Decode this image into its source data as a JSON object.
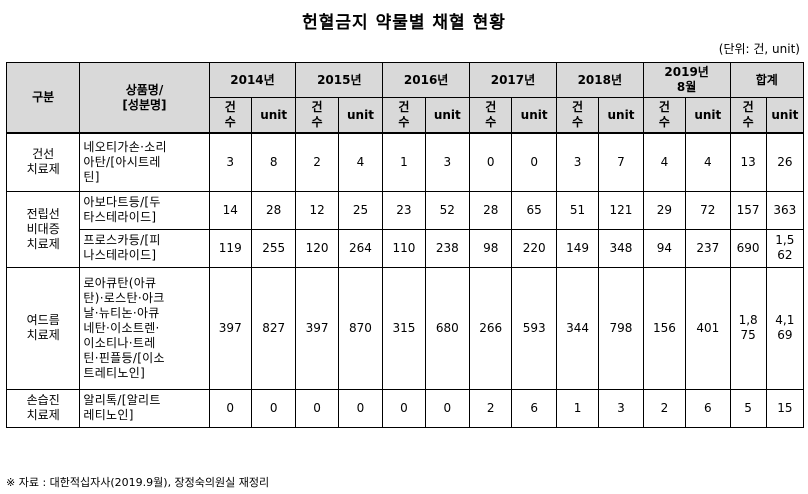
{
  "title": "헌혈금지 약물별 채혈 현황",
  "unit_note": "(단위: 건, unit)",
  "header": {
    "category": "구분",
    "product": "상품명/\n[성분명]",
    "years": [
      "2014년",
      "2015년",
      "2016년",
      "2017년",
      "2018년",
      "2019년\n8월",
      "합계"
    ],
    "count": "건\n수",
    "unit": "unit"
  },
  "rows": [
    {
      "category": "건선\n치료제",
      "product": "네오티가손·소리\n아탄/[아시트레\n틴]",
      "values": [
        "3",
        "8",
        "2",
        "4",
        "1",
        "3",
        "0",
        "0",
        "3",
        "7",
        "4",
        "4",
        "13",
        "26"
      ]
    },
    {
      "category": "전립선\n비대증\n치료제",
      "product": "아보다트등/[두\n타스테라이드]",
      "values": [
        "14",
        "28",
        "12",
        "25",
        "23",
        "52",
        "28",
        "65",
        "51",
        "121",
        "29",
        "72",
        "157",
        "363"
      ]
    },
    {
      "category": "",
      "product": "프로스카등/[피\n나스테라이드]",
      "values": [
        "119",
        "255",
        "120",
        "264",
        "110",
        "238",
        "98",
        "220",
        "149",
        "348",
        "94",
        "237",
        "690",
        "1,5\n62"
      ]
    },
    {
      "category": "여드름\n치료제",
      "product": "로아큐탄(아큐\n탄)·로스탄·아크\n날·뉴티논·아큐\n네탄·이소트렌·\n이소티나·트레\n틴·핀플등/[이소\n트레티노인]",
      "values": [
        "397",
        "827",
        "397",
        "870",
        "315",
        "680",
        "266",
        "593",
        "344",
        "798",
        "156",
        "401",
        "1,8\n75",
        "4,1\n69"
      ]
    },
    {
      "category": "손습진\n치료제",
      "product": "알리톡/[알리트\n레티노인]",
      "values": [
        "0",
        "0",
        "0",
        "0",
        "0",
        "0",
        "2",
        "6",
        "1",
        "3",
        "2",
        "6",
        "5",
        "15"
      ]
    }
  ],
  "source": "※ 자료 : 대한적십자사(2019.9월), 장정숙의원실 재정리"
}
